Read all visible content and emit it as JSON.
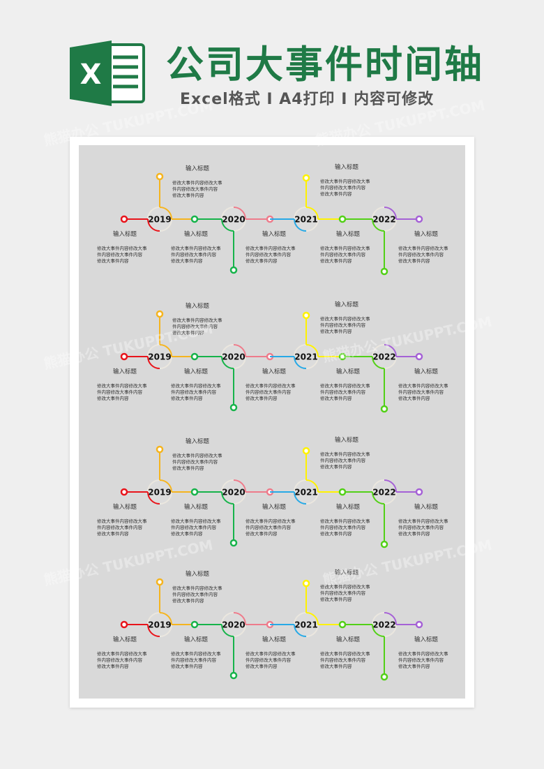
{
  "header": {
    "title": "公司大事件时间轴",
    "subtitle": "Excel格式 I A4打印 I 内容可修改",
    "logo_letter": "X"
  },
  "watermark": "熊猫办公 TUKUPPT.COM",
  "colors": {
    "brand": "#1f7a46",
    "sheet": "#d9d9d9",
    "red": "#e8141b",
    "orange": "#f5b41e",
    "green": "#16b34a",
    "pink": "#ee7b8b",
    "blue": "#27a9e6",
    "yellow": "#fff200",
    "lime": "#52d017",
    "purple": "#a561d6"
  },
  "timelines": [
    {
      "years": [
        "2019",
        "2020",
        "2021",
        "2022"
      ]
    },
    {
      "years": [
        "2019",
        "2020",
        "2021",
        "2022"
      ]
    },
    {
      "years": [
        "2019",
        "2020",
        "2021",
        "2022"
      ]
    },
    {
      "years": [
        "2019",
        "2020",
        "2021",
        "2022"
      ]
    }
  ],
  "event": {
    "title": "输入标题",
    "body": [
      "修改大事件内容修改大事",
      "件内容修改大事件内容",
      "修改大事件内容"
    ]
  }
}
